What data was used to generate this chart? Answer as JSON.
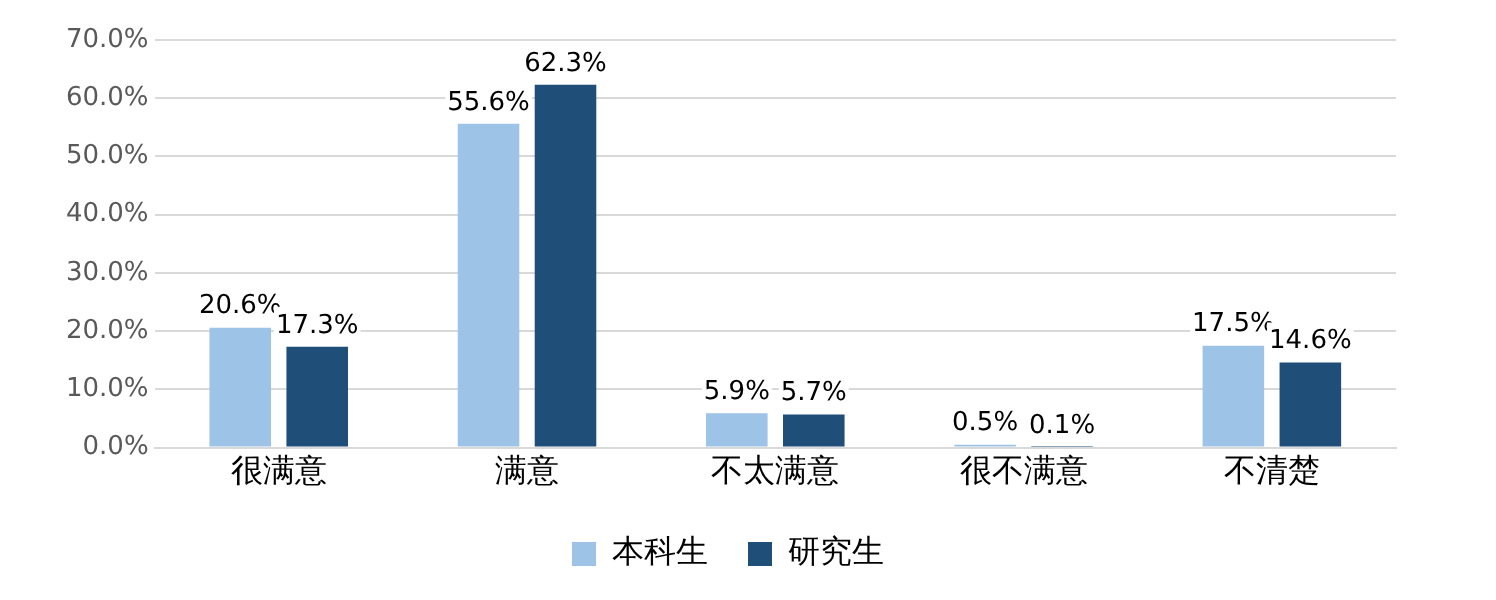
{
  "chart_data": {
    "type": "bar",
    "categories": [
      "很满意",
      "满意",
      "不太满意",
      "很不满意",
      "不清楚"
    ],
    "series": [
      {
        "name": "本科生",
        "color": "#9dc3e6",
        "values": [
          20.6,
          55.6,
          5.9,
          0.5,
          17.5
        ],
        "value_labels": [
          "20.6%",
          "55.6%",
          "5.9%",
          "0.5%",
          "17.5%"
        ]
      },
      {
        "name": "研究生",
        "color": "#1f4e79",
        "values": [
          17.3,
          62.3,
          5.7,
          0.1,
          14.6
        ],
        "value_labels": [
          "17.3%",
          "62.3%",
          "5.7%",
          "0.1%",
          "14.6%"
        ]
      }
    ],
    "ylim": [
      0,
      70
    ],
    "yticks": [
      {
        "value": 0,
        "label": "0.0%"
      },
      {
        "value": 10,
        "label": "10.0%"
      },
      {
        "value": 20,
        "label": "20.0%"
      },
      {
        "value": 30,
        "label": "30.0%"
      },
      {
        "value": 40,
        "label": "40.0%"
      },
      {
        "value": 50,
        "label": "50.0%"
      },
      {
        "value": 60,
        "label": "60.0%"
      },
      {
        "value": 70,
        "label": "70.0%"
      }
    ],
    "grid": "y",
    "legend": "bottom"
  }
}
